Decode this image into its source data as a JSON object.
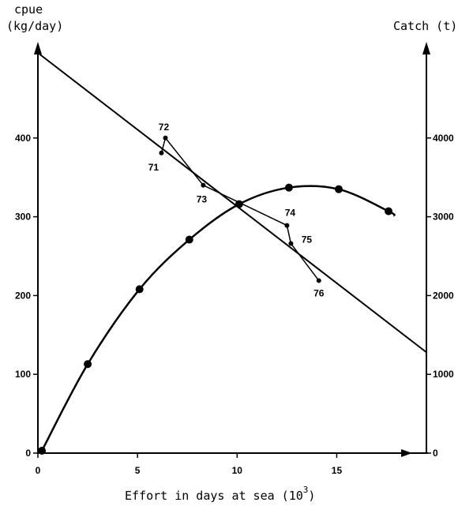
{
  "chart_data": {
    "type": "line",
    "title": "",
    "xlabel": "Effort in days at sea (10",
    "xlabel_sup": "3",
    "xlabel_close": ")",
    "ylabel_left": [
      "cpue",
      "(kg/day)"
    ],
    "ylabel_right": "Catch (t)",
    "xlim": [
      0,
      19.5
    ],
    "ylim_left": [
      0,
      500
    ],
    "ylim_right": [
      0,
      5000
    ],
    "x_ticks": [
      0,
      5,
      10,
      15
    ],
    "x_tick_labels": [
      "0",
      "5",
      "10",
      "15"
    ],
    "y_left_ticks": [
      0,
      100,
      200,
      300,
      400
    ],
    "y_left_tick_labels": [
      "0",
      "100",
      "200",
      "300",
      "400"
    ],
    "y_right_ticks": [
      0,
      1000,
      2000,
      3000,
      4000
    ],
    "y_right_tick_labels": [
      "0",
      "1000",
      "2000",
      "3000",
      "4000"
    ],
    "grid": false,
    "series": [
      {
        "axis": "left",
        "style": "straight-line",
        "x": [
          0,
          19.5
        ],
        "y": [
          508,
          128
        ]
      },
      {
        "axis": "left",
        "style": "points-joined",
        "x": [
          6.2,
          6.4,
          8.3,
          12.5,
          12.7,
          14.1
        ],
        "y": [
          381,
          400,
          340,
          289,
          266,
          219
        ],
        "labels": [
          "71",
          "72",
          "73",
          "74",
          "75",
          "76"
        ]
      },
      {
        "axis": "right",
        "style": "curve-with-markers",
        "x": [
          0.2,
          2.5,
          5.1,
          7.6,
          10.1,
          12.6,
          15.1,
          17.6
        ],
        "y": [
          30,
          1130,
          2080,
          2710,
          3160,
          3370,
          3350,
          3070
        ],
        "curve_end": [
          17.9,
          3010
        ]
      }
    ]
  }
}
